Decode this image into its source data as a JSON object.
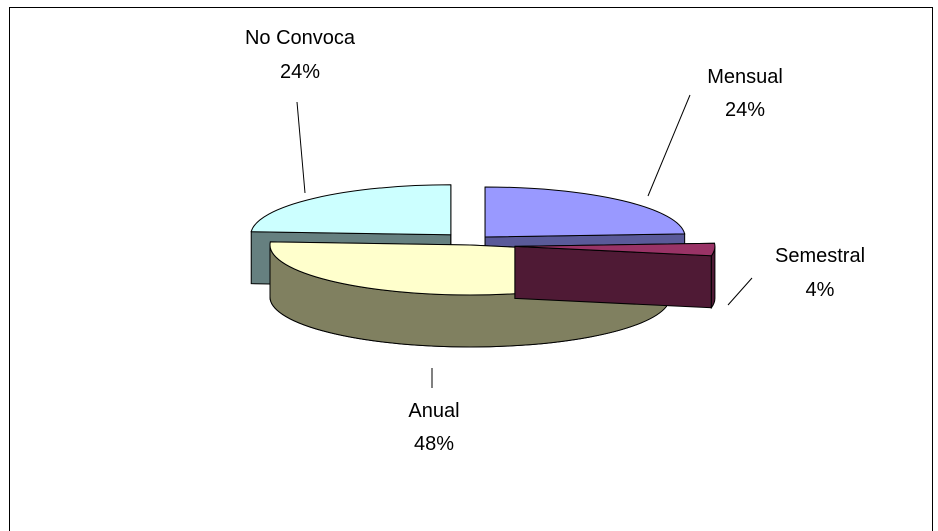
{
  "chart_data": {
    "type": "pie",
    "title": "",
    "three_d": true,
    "exploded": true,
    "slices": [
      {
        "name": "Mensual",
        "value": 24,
        "label": "24%",
        "color": "#9999FF",
        "side_color": "#5A5A99"
      },
      {
        "name": "Semestral",
        "value": 4,
        "label": "4%",
        "color": "#993366",
        "side_color": "#4F1A35"
      },
      {
        "name": "Anual",
        "value": 48,
        "label": "48%",
        "color": "#FFFFCC",
        "side_color": "#808060"
      },
      {
        "name": "No Convoca",
        "value": 24,
        "label": "24%",
        "color": "#CCFFFF",
        "side_color": "#668080"
      }
    ]
  }
}
